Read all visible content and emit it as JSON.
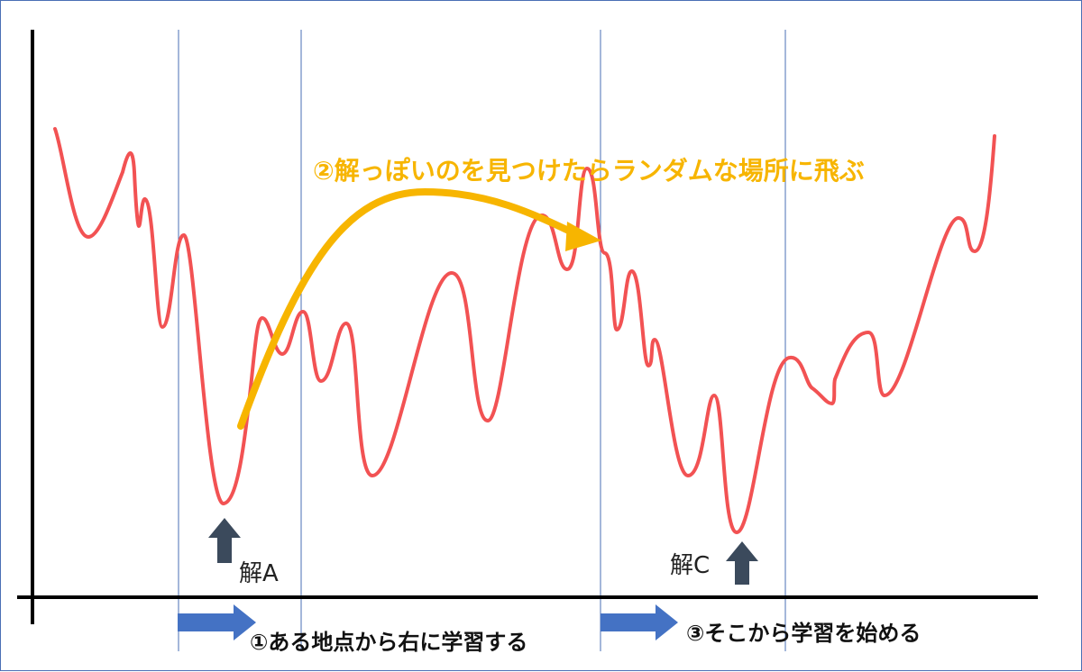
{
  "colors": {
    "curve": "#f25253",
    "jump_arrow": "#f7b500",
    "step_arrow": "#4472c4",
    "solution_arrow": "#3b4a5c",
    "axis": "#000000",
    "guide_line": "#4a6fb5"
  },
  "labels": {
    "jump": "②解っぽいのを見つけたらランダムな場所に飛ぶ",
    "step1": "①ある地点から右に学習する",
    "step3": "③そこから学習を始める",
    "solution_a": "解A",
    "solution_c": "解C"
  },
  "icons": {
    "step1_arrow": "right-arrow-icon",
    "step3_arrow": "right-arrow-icon",
    "solution_a_arrow": "up-arrow-icon",
    "solution_c_arrow": "up-arrow-icon"
  }
}
